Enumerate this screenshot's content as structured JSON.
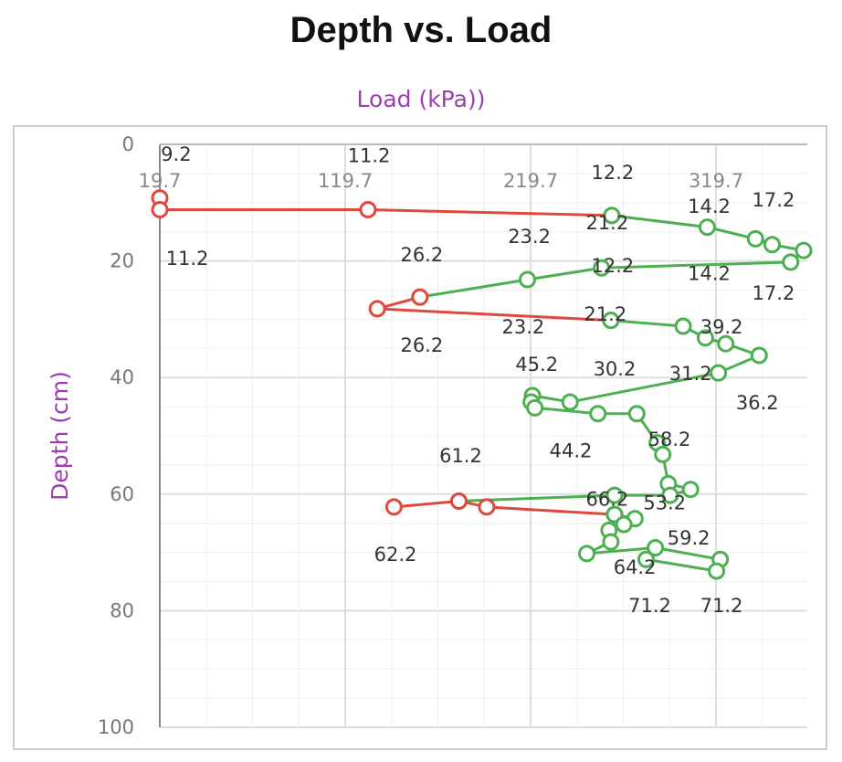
{
  "chart_data": {
    "type": "line",
    "title": "Depth vs. Load",
    "xlabel": "Load (kPa))",
    "ylabel": "Depth (cm)",
    "x_axis_position": "top",
    "y_axis_inverted": true,
    "xlim": [
      19.7,
      370
    ],
    "ylim": [
      0,
      100
    ],
    "x_ticks": [
      "19.7",
      "119.7",
      "219.7",
      "319.7"
    ],
    "y_ticks": [
      "0",
      "20",
      "40",
      "60",
      "80",
      "100"
    ],
    "grid": true,
    "colors": {
      "red": "#e0483e",
      "green": "#4caf50",
      "title": "#111111",
      "axis_label": "#9b3fb0"
    },
    "segments": [
      {
        "color": "red",
        "points": [
          [
            19.7,
            9.2
          ],
          [
            19.7,
            11.2
          ],
          [
            132,
            11.2
          ],
          [
            263.5,
            12.2
          ]
        ]
      },
      {
        "color": "green",
        "points": [
          [
            263.5,
            12.2
          ],
          [
            315,
            14.2
          ],
          [
            341,
            16.2
          ],
          [
            350,
            17.2
          ],
          [
            367,
            18.2
          ],
          [
            360,
            20.2
          ],
          [
            258,
            21.2
          ],
          [
            218,
            23.2
          ],
          [
            160,
            26.2
          ]
        ]
      },
      {
        "color": "red",
        "points": [
          [
            160,
            26.2
          ],
          [
            137,
            28.2
          ],
          [
            263,
            30.2
          ]
        ]
      },
      {
        "color": "green",
        "points": [
          [
            263,
            30.2
          ],
          [
            302,
            31.2
          ],
          [
            314,
            33.2
          ],
          [
            325,
            34.2
          ],
          [
            343,
            36.2
          ],
          [
            321,
            39.2
          ],
          [
            241,
            44.2
          ],
          [
            220.7,
            43.1
          ],
          [
            220,
            44.2
          ],
          [
            222,
            45.2
          ],
          [
            256,
            46.2
          ],
          [
            277,
            46.2
          ],
          [
            288,
            51.2
          ],
          [
            291,
            53.2
          ],
          [
            294,
            58.2
          ],
          [
            306,
            59.2
          ],
          [
            295,
            60.2
          ],
          [
            265,
            60.2
          ],
          [
            181,
            61.2
          ]
        ]
      },
      {
        "color": "red",
        "points": [
          [
            146,
            62.2
          ],
          [
            181,
            61.2
          ],
          [
            196,
            62.2
          ],
          [
            265,
            63.5
          ]
        ]
      },
      {
        "color": "green",
        "points": [
          [
            265,
            63.5
          ],
          [
            276,
            64.2
          ],
          [
            270,
            65.2
          ],
          [
            262,
            66.2
          ],
          [
            263,
            68.2
          ],
          [
            250,
            70.2
          ],
          [
            287,
            69.2
          ],
          [
            322,
            71.2
          ],
          [
            320,
            73.2
          ],
          [
            282,
            71.2
          ]
        ]
      }
    ],
    "data_labels": [
      {
        "text": "9.2",
        "x": 28.5,
        "y": 3.1
      },
      {
        "text": "11.2",
        "x": 132.5,
        "y": 3.4
      },
      {
        "text": "12.2",
        "x": 264,
        "y": 4.7
      },
      {
        "text": "14.2",
        "x": 316,
        "y": 6.6
      },
      {
        "text": "17.2",
        "x": 350.7,
        "y": 9.4
      },
      {
        "text": "11.2",
        "x": 34.5,
        "y": 19.4
      },
      {
        "text": "26.2",
        "x": 161,
        "y": 18.8
      },
      {
        "text": "23.2",
        "x": 219,
        "y": 15.7
      },
      {
        "text": "21.2",
        "x": 261,
        "y": 13.3
      },
      {
        "text": "12.2",
        "x": 264,
        "y": 20.7
      },
      {
        "text": "14.2",
        "x": 316,
        "y": 22
      },
      {
        "text": "17.2",
        "x": 350.7,
        "y": 25.4
      },
      {
        "text": "26.2",
        "x": 161,
        "y": 34.3
      },
      {
        "text": "23.2",
        "x": 215.7,
        "y": 31.2
      },
      {
        "text": "21.2",
        "x": 260,
        "y": 29
      },
      {
        "text": "39.2",
        "x": 322.7,
        "y": 31.2
      },
      {
        "text": "45.2",
        "x": 223,
        "y": 37.6
      },
      {
        "text": "30.2",
        "x": 265,
        "y": 38.4
      },
      {
        "text": "31.2",
        "x": 306,
        "y": 39.2
      },
      {
        "text": "36.2",
        "x": 342,
        "y": 44.2
      },
      {
        "text": "44.2",
        "x": 241.4,
        "y": 52.4
      },
      {
        "text": "58.2",
        "x": 294.6,
        "y": 50.5
      },
      {
        "text": "61.2",
        "x": 182,
        "y": 53.3
      },
      {
        "text": "66.2",
        "x": 261,
        "y": 60.7
      },
      {
        "text": "53.2",
        "x": 292,
        "y": 61.4
      },
      {
        "text": "62.2",
        "x": 146.8,
        "y": 70.2
      },
      {
        "text": "59.2",
        "x": 305,
        "y": 67.4
      },
      {
        "text": "64.2",
        "x": 275.9,
        "y": 72.4
      },
      {
        "text": "71.2",
        "x": 284,
        "y": 79
      },
      {
        "text": "71.2",
        "x": 322.7,
        "y": 79
      }
    ]
  }
}
